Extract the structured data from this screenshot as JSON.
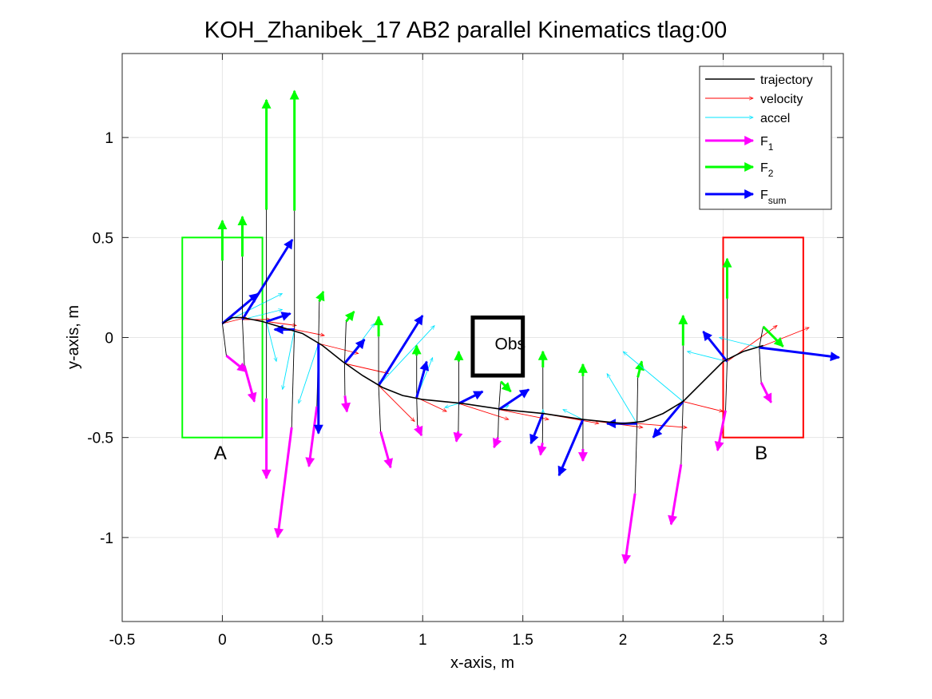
{
  "chart_data": {
    "type": "line",
    "title": "KOH_Zhanibek_17    AB2    parallel    Kinematics tlag:00",
    "xlabel": "x-axis, m",
    "ylabel": "y-axis, m",
    "xlim": [
      -0.5,
      3.1
    ],
    "ylim": [
      -1.42,
      1.42
    ],
    "xticks": [
      -0.5,
      0,
      0.5,
      1,
      1.5,
      2,
      2.5,
      3
    ],
    "xtick_labels": [
      "-0.5",
      "0",
      "0.5",
      "1",
      "1.5",
      "2",
      "2.5",
      "3"
    ],
    "yticks": [
      -1,
      -0.5,
      0,
      0.5,
      1
    ],
    "ytick_labels": [
      "-1",
      "-0.5",
      "0",
      "0.5",
      "1"
    ],
    "grid": true,
    "legend_position": "top-right",
    "legend": [
      {
        "label": "trajectory",
        "sub": "",
        "color": "#000000",
        "style": "line"
      },
      {
        "label": "velocity",
        "sub": "",
        "color": "#ff0000",
        "style": "arrow-thin"
      },
      {
        "label": "accel",
        "sub": "",
        "color": "#00e5ff",
        "style": "arrow-thin"
      },
      {
        "label": "F",
        "sub": "1",
        "color": "#ff00ff",
        "style": "arrow-thick"
      },
      {
        "label": "F",
        "sub": "2",
        "color": "#00ff00",
        "style": "arrow-thick"
      },
      {
        "label": "F",
        "sub": "sum",
        "color": "#0000ff",
        "style": "arrow-thick"
      }
    ],
    "regions": [
      {
        "label": "A",
        "color": "#00ff00",
        "x0": -0.2,
        "x1": 0.2,
        "y0": -0.5,
        "y1": 0.5,
        "label_pos": [
          -0.01,
          -0.61
        ]
      },
      {
        "label": "B",
        "color": "#ff0000",
        "x0": 2.5,
        "x1": 2.9,
        "y0": -0.5,
        "y1": 0.5,
        "label_pos": [
          2.69,
          -0.61
        ]
      }
    ],
    "obstacle": {
      "label": "Obs",
      "x0": 1.25,
      "x1": 1.5,
      "y0": -0.19,
      "y1": 0.1,
      "label_pos": [
        1.36,
        -0.06
      ]
    },
    "trajectory": {
      "x": [
        0.0,
        0.05,
        0.1,
        0.2,
        0.3,
        0.4,
        0.5,
        0.6,
        0.7,
        0.8,
        0.9,
        1.0,
        1.2,
        1.4,
        1.6,
        1.8,
        2.0,
        2.1,
        2.2,
        2.3,
        2.4,
        2.5,
        2.6,
        2.7
      ],
      "y": [
        0.07,
        0.1,
        0.1,
        0.08,
        0.05,
        0.02,
        -0.04,
        -0.12,
        -0.19,
        -0.25,
        -0.29,
        -0.31,
        -0.33,
        -0.36,
        -0.38,
        -0.41,
        -0.43,
        -0.42,
        -0.38,
        -0.32,
        -0.22,
        -0.12,
        -0.07,
        -0.04
      ]
    },
    "sample_points": [
      {
        "x": 0.0,
        "y": 0.07,
        "vel": [
          0.12,
          0.03
        ],
        "acc": [
          0.3,
          0.15
        ],
        "f1": [
          0.1,
          -0.08
        ],
        "f2": [
          0.0,
          0.2
        ],
        "fsum": [
          0.18,
          0.15
        ]
      },
      {
        "x": 0.1,
        "y": 0.09,
        "vel": [
          0.14,
          0.0
        ],
        "acc": [
          0.2,
          0.05
        ],
        "f1": [
          0.05,
          -0.18
        ],
        "f2": [
          0.0,
          0.2
        ],
        "fsum": [
          0.25,
          0.4
        ]
      },
      {
        "x": 0.22,
        "y": 0.08,
        "vel": [
          0.15,
          -0.02
        ],
        "acc": [
          0.05,
          -0.2
        ],
        "f1": [
          0.0,
          -0.4
        ],
        "f2": [
          0.0,
          0.55
        ],
        "fsum": [
          0.12,
          0.04
        ]
      },
      {
        "x": 0.36,
        "y": 0.04,
        "vel": [
          0.15,
          -0.03
        ],
        "acc": [
          -0.06,
          -0.3
        ],
        "f1": [
          -0.07,
          -0.55
        ],
        "f2": [
          0.0,
          0.6
        ],
        "fsum": [
          -0.1,
          0.0
        ]
      },
      {
        "x": 0.48,
        "y": -0.03,
        "vel": [
          0.2,
          -0.05
        ],
        "acc": [
          -0.1,
          -0.3
        ],
        "f1": [
          -0.04,
          -0.3
        ],
        "f2": [
          0.02,
          0.05
        ],
        "fsum": [
          0.0,
          -0.45
        ]
      },
      {
        "x": 0.61,
        "y": -0.13,
        "vel": [
          0.22,
          -0.05
        ],
        "acc": [
          0.15,
          0.2
        ],
        "f1": [
          0.01,
          -0.08
        ],
        "f2": [
          0.04,
          0.05
        ],
        "fsum": [
          0.1,
          0.12
        ]
      },
      {
        "x": 0.78,
        "y": -0.24,
        "vel": [
          0.18,
          -0.18
        ],
        "acc": [
          0.28,
          0.3
        ],
        "f1": [
          0.05,
          -0.18
        ],
        "f2": [
          0.0,
          0.1
        ],
        "fsum": [
          0.22,
          0.35
        ]
      },
      {
        "x": 0.97,
        "y": -0.3,
        "vel": [
          0.15,
          -0.07
        ],
        "acc": [
          0.08,
          0.2
        ],
        "f1": [
          0.02,
          -0.05
        ],
        "f2": [
          0.0,
          0.05
        ],
        "fsum": [
          0.05,
          0.18
        ]
      },
      {
        "x": 1.18,
        "y": -0.33,
        "vel": [
          0.25,
          -0.08
        ],
        "acc": [
          -0.07,
          -0.02
        ],
        "f1": [
          -0.01,
          -0.05
        ],
        "f2": [
          0.0,
          0.05
        ],
        "fsum": [
          0.12,
          0.06
        ]
      },
      {
        "x": 1.38,
        "y": -0.36,
        "vel": [
          0.25,
          -0.05
        ],
        "acc": [
          0.05,
          0.02
        ],
        "f1": [
          -0.02,
          -0.05
        ],
        "f2": [
          0.05,
          -0.05
        ],
        "fsum": [
          0.15,
          0.1
        ]
      },
      {
        "x": 1.6,
        "y": -0.38,
        "vel": [
          0.28,
          -0.05
        ],
        "acc": [
          0.0,
          0.02
        ],
        "f1": [
          -0.01,
          -0.06
        ],
        "f2": [
          0.0,
          0.08
        ],
        "fsum": [
          -0.06,
          -0.15
        ]
      },
      {
        "x": 1.8,
        "y": -0.41,
        "vel": [
          0.3,
          -0.04
        ],
        "acc": [
          -0.1,
          0.05
        ],
        "f1": [
          0.0,
          -0.06
        ],
        "f2": [
          0.0,
          0.06
        ],
        "fsum": [
          -0.12,
          -0.28
        ]
      },
      {
        "x": 2.07,
        "y": -0.43,
        "vel": [
          0.25,
          -0.02
        ],
        "acc": [
          -0.15,
          0.25
        ],
        "f1": [
          -0.05,
          -0.35
        ],
        "f2": [
          0.02,
          0.08
        ],
        "fsum": [
          -0.15,
          0.0
        ]
      },
      {
        "x": 2.3,
        "y": -0.32,
        "vel": [
          0.2,
          -0.05
        ],
        "acc": [
          -0.3,
          0.25
        ],
        "f1": [
          -0.05,
          -0.3
        ],
        "f2": [
          0.0,
          0.15
        ],
        "fsum": [
          -0.15,
          -0.18
        ]
      },
      {
        "x": 2.52,
        "y": -0.12,
        "vel": [
          0.25,
          0.18
        ],
        "acc": [
          -0.2,
          0.05
        ],
        "f1": [
          -0.04,
          -0.2
        ],
        "f2": [
          0.0,
          0.2
        ],
        "fsum": [
          -0.12,
          0.15
        ]
      },
      {
        "x": 2.68,
        "y": -0.05,
        "vel": [
          0.25,
          0.1
        ],
        "acc": [
          -0.2,
          0.05
        ],
        "f1": [
          0.05,
          -0.1
        ],
        "f2": [
          0.1,
          -0.1
        ],
        "fsum": [
          0.4,
          -0.05
        ]
      }
    ]
  }
}
